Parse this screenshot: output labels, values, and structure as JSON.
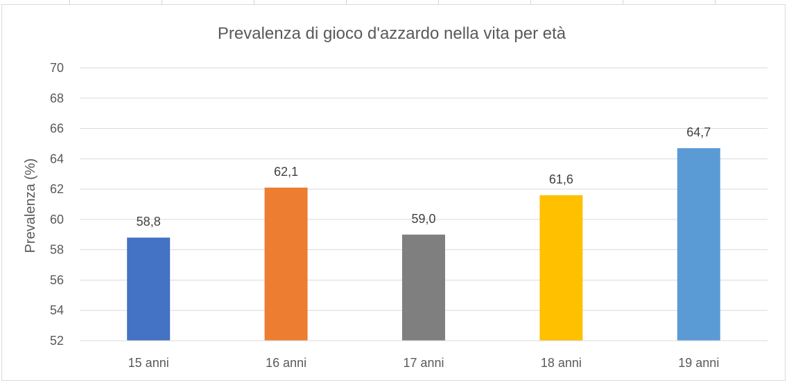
{
  "chart_data": {
    "type": "bar",
    "title": "Prevalenza di gioco d'azzardo nella vita per età",
    "xlabel": "",
    "ylabel": "Prevalenza (%)",
    "ylim": [
      52,
      70
    ],
    "yticks": [
      52,
      54,
      56,
      58,
      60,
      62,
      64,
      66,
      68,
      70
    ],
    "ytick_labels": [
      "52",
      "54",
      "56",
      "58",
      "60",
      "62",
      "64",
      "66",
      "68",
      "70"
    ],
    "categories": [
      "15 anni",
      "16 anni",
      "17 anni",
      "18 anni",
      "19 anni"
    ],
    "values": [
      58.8,
      62.1,
      59.0,
      61.6,
      64.7
    ],
    "data_labels": [
      "58,8",
      "62,1",
      "59,0",
      "61,6",
      "64,7"
    ],
    "colors": [
      "#4472c4",
      "#ed7d31",
      "#7f7f7f",
      "#ffc000",
      "#5b9bd5"
    ],
    "grid": true,
    "legend": "none"
  }
}
